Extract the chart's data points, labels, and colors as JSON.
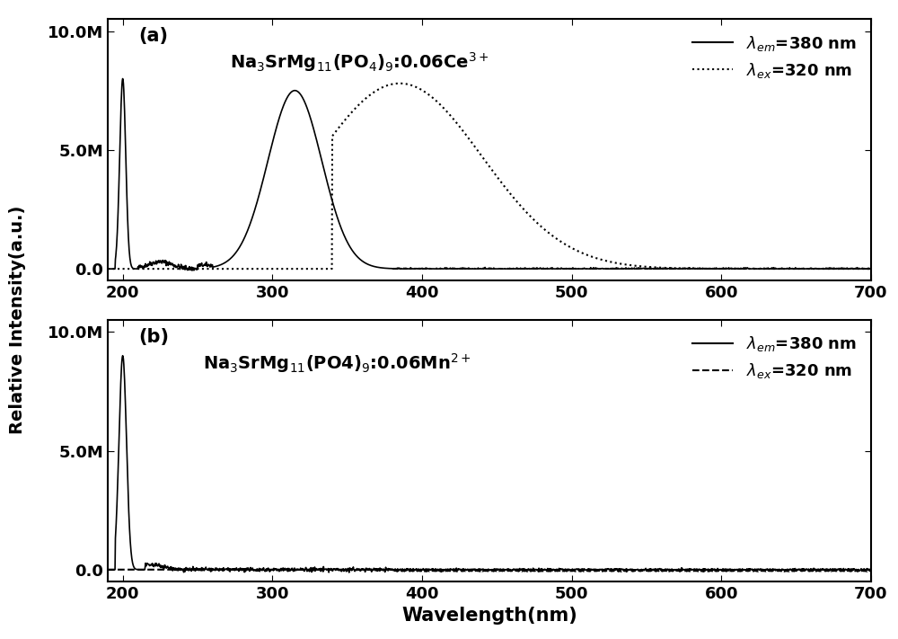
{
  "title_a": "Na$_3$SrMg$_{11}$(PO$_4$)$_9$:0.06Ce$^{3+}$",
  "title_b": "Na$_3$SrMg$_{11}$(PO4)$_9$:0.06Mn$^{2+}$",
  "xlabel": "Wavelength(nm)",
  "ylabel": "Relative Intensity(a.u.)",
  "xlim": [
    190,
    700
  ],
  "ylim_a": [
    -500000.0,
    10500000.0
  ],
  "ylim_b": [
    -500000.0,
    10500000.0
  ],
  "yticks": [
    0.0,
    5000000.0,
    10000000.0
  ],
  "ytick_labels": [
    "0.0",
    "5.0M",
    "10.0M"
  ],
  "xticks": [
    200,
    300,
    400,
    500,
    600,
    700
  ],
  "legend_solid": "$\\lambda_{em}$=380 nm",
  "legend_dotted_a": "$\\lambda_{ex}$=320 nm",
  "legend_dashed_b": "$\\lambda_{ex}$=320 nm",
  "panel_a_label": "(a)",
  "panel_b_label": "(b)",
  "line_color": "black",
  "background_color": "white",
  "figsize": [
    10.0,
    7.11
  ],
  "dpi": 100
}
